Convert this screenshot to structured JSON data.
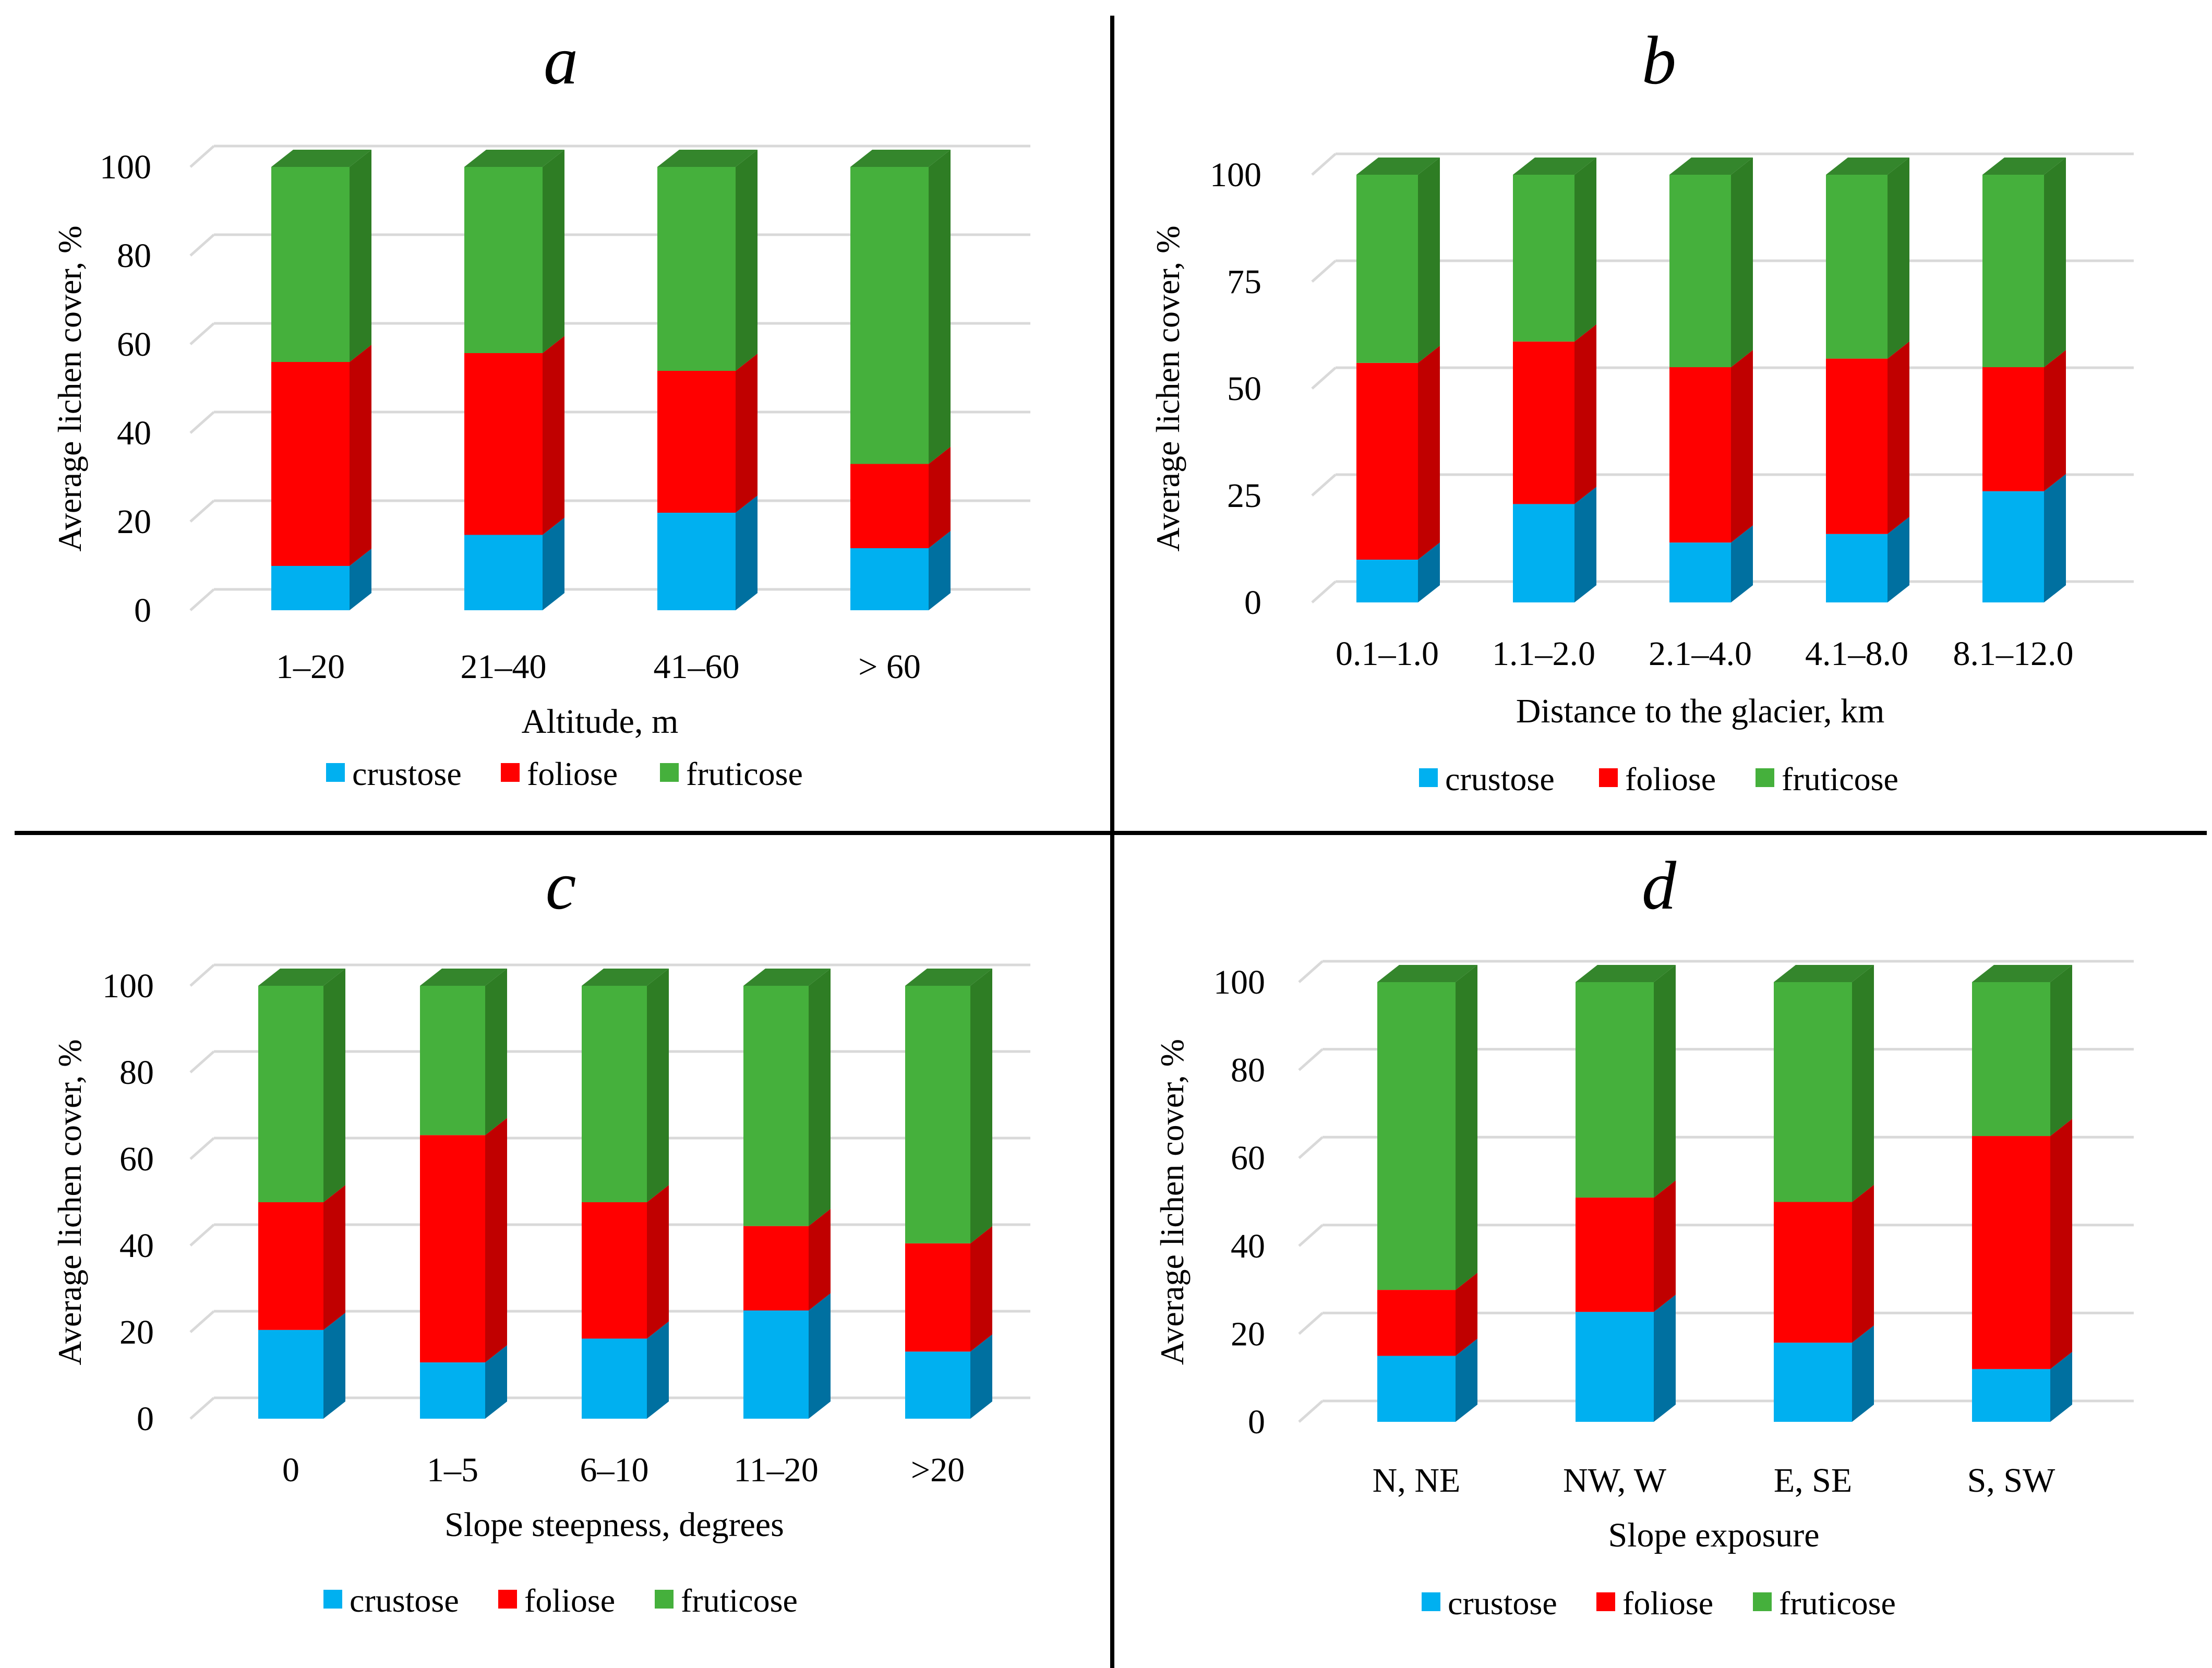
{
  "legend_labels": [
    "crustose",
    "foliose",
    "fruticose"
  ],
  "colors": {
    "crustose": "#00B0F0",
    "crustose_side": "#0070A0",
    "foliose": "#FF0000",
    "foliose_side": "#C00000",
    "fruticose": "#45B03C",
    "fruticose_side": "#2E7D24",
    "fruticose_top": "#34862C",
    "grid": "#D9D9D9",
    "divider": "#000000"
  },
  "chart_data": [
    {
      "panel": "a",
      "type": "bar",
      "stacked": true,
      "ylabel": "Average lichen cover, %",
      "xlabel": "Altitude, m",
      "categories": [
        "1–20",
        "21–40",
        "41–60",
        "> 60"
      ],
      "yticks": [
        "0",
        "20",
        "40",
        "60",
        "80",
        "100"
      ],
      "ylim": [
        0,
        100
      ],
      "series": [
        {
          "name": "crustose",
          "values": [
            10,
            17,
            22,
            14
          ]
        },
        {
          "name": "foliose",
          "values": [
            46,
            41,
            32,
            19
          ]
        },
        {
          "name": "fruticose",
          "values": [
            44,
            42,
            46,
            67
          ]
        }
      ],
      "legend": "bottom"
    },
    {
      "panel": "b",
      "type": "bar",
      "stacked": true,
      "ylabel": "Average lichen cover, %",
      "xlabel": "Distance to the glacier, km",
      "categories": [
        "0.1–1.0",
        "1.1–2.0",
        "2.1–4.0",
        "4.1–8.0",
        "8.1–12.0"
      ],
      "yticks": [
        "0",
        "25",
        "50",
        "75",
        "100"
      ],
      "ylim": [
        0,
        100
      ],
      "series": [
        {
          "name": "crustose",
          "values": [
            10,
            23,
            14,
            16,
            26
          ]
        },
        {
          "name": "foliose",
          "values": [
            46,
            38,
            41,
            41,
            29
          ]
        },
        {
          "name": "fruticose",
          "values": [
            44,
            39,
            45,
            43,
            45
          ]
        }
      ],
      "legend": "bottom"
    },
    {
      "panel": "c",
      "type": "bar",
      "stacked": true,
      "ylabel": "Average lichen cover, %",
      "xlabel": "Slope steepness, degrees",
      "categories": [
        "0",
        "1–5",
        "6–10",
        "11–20",
        ">20"
      ],
      "yticks": [
        "0",
        "20",
        "40",
        "60",
        "80",
        "100"
      ],
      "ylim": [
        0,
        100
      ],
      "series": [
        {
          "name": "crustose",
          "values": [
            20.5,
            13,
            18.5,
            25,
            15.5
          ]
        },
        {
          "name": "foliose",
          "values": [
            29.5,
            52.5,
            31.5,
            19.5,
            25
          ]
        },
        {
          "name": "fruticose",
          "values": [
            50,
            34.5,
            50,
            55.5,
            59.5
          ]
        }
      ],
      "legend": "bottom"
    },
    {
      "panel": "d",
      "type": "bar",
      "stacked": true,
      "ylabel": "Average lichen cover, %",
      "xlabel": "Slope exposure",
      "categories": [
        "N, NE",
        "NW, W",
        "E, SE",
        "S, SW"
      ],
      "yticks": [
        "0",
        "20",
        "40",
        "60",
        "80",
        "100"
      ],
      "ylim": [
        0,
        100
      ],
      "series": [
        {
          "name": "crustose",
          "values": [
            15,
            25,
            18,
            12
          ]
        },
        {
          "name": "foliose",
          "values": [
            15,
            26,
            32,
            53
          ]
        },
        {
          "name": "fruticose",
          "values": [
            70,
            49,
            50,
            35
          ]
        }
      ],
      "legend": "bottom"
    }
  ]
}
